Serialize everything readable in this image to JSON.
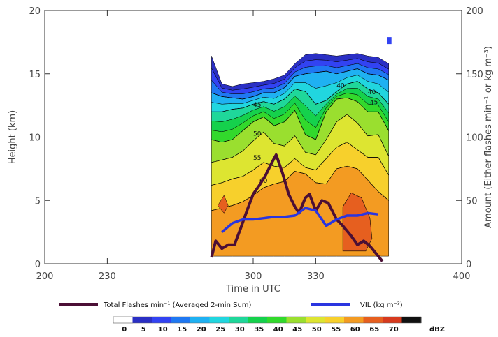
{
  "chart_data": {
    "type": "area",
    "xlabel": "Time in UTC",
    "ylabel": "Height (km)",
    "y2label": "Amount (Either flashes min⁻¹ or kg m⁻³)",
    "xlim": [
      200,
      400
    ],
    "ylim": [
      0,
      20
    ],
    "y2lim": [
      0,
      200
    ],
    "xticks": [
      "200",
      "230",
      "300",
      "330",
      "400"
    ],
    "yticks": [
      "0",
      "5",
      "10",
      "15",
      "20"
    ],
    "y2ticks": [
      "0",
      "50",
      "100",
      "150",
      "200"
    ],
    "reflectivity_contours": {
      "units": "dBZ",
      "time_start": 280,
      "time_end": 365,
      "times": [
        280,
        285,
        290,
        295,
        300,
        305,
        310,
        315,
        320,
        325,
        330,
        335,
        340,
        345,
        350,
        355,
        360,
        365
      ],
      "top_5dBZ": [
        16.4,
        14.2,
        14.0,
        14.2,
        14.3,
        14.4,
        14.6,
        14.9,
        15.8,
        16.5,
        16.6,
        16.5,
        16.4,
        16.5,
        16.6,
        16.4,
        16.3,
        15.8
      ],
      "level_20dBZ": [
        13.5,
        13.2,
        13.1,
        13.0,
        13.2,
        13.5,
        13.5,
        13.9,
        14.8,
        15.0,
        15.1,
        15.2,
        15.0,
        15.2,
        15.4,
        15.0,
        14.9,
        14.5
      ],
      "level_30dBZ": [
        12.0,
        12.0,
        12.2,
        12.3,
        12.6,
        12.8,
        12.6,
        13.0,
        13.8,
        13.6,
        12.6,
        12.9,
        13.6,
        14.2,
        14.4,
        13.8,
        13.5,
        12.6
      ],
      "level_45dBZ": [
        9.8,
        9.6,
        9.8,
        10.5,
        11.2,
        11.6,
        10.9,
        11.2,
        12.1,
        10.2,
        9.8,
        12.0,
        13.0,
        13.1,
        12.8,
        12.0,
        12.0,
        10.5
      ],
      "level_50dBZ": [
        8.0,
        8.2,
        8.4,
        8.9,
        9.7,
        10.4,
        9.5,
        9.3,
        10.1,
        8.8,
        8.6,
        9.8,
        11.2,
        11.8,
        11.1,
        10.1,
        10.2,
        8.5
      ],
      "level_55dBZ": [
        6.2,
        6.4,
        6.7,
        6.9,
        7.4,
        8.0,
        7.7,
        7.6,
        8.3,
        7.6,
        7.4,
        8.3,
        9.2,
        9.6,
        9.0,
        8.4,
        8.4,
        7.0
      ],
      "level_60dBZ": [
        4.2,
        4.4,
        4.6,
        4.9,
        5.4,
        6.0,
        6.3,
        6.5,
        7.3,
        7.1,
        6.4,
        6.3,
        7.5,
        7.7,
        7.5,
        6.6,
        5.7,
        5.0
      ],
      "contour_labels": [
        "40",
        "45",
        "50",
        "55",
        "60",
        "45",
        "40"
      ]
    },
    "series": [
      {
        "name": "Total Flashes min⁻¹ (Averaged 2-min Sum)",
        "color": "#4b0f35",
        "x": [
          280,
          282,
          285,
          288,
          291,
          294,
          297,
          300,
          303,
          306,
          309,
          311,
          314,
          317,
          320,
          322,
          325,
          327,
          330,
          333,
          336,
          340,
          343,
          347,
          350,
          353,
          356,
          360,
          362
        ],
        "y": [
          5,
          18,
          12,
          15,
          15,
          28,
          42,
          55,
          62,
          70,
          80,
          86,
          72,
          55,
          45,
          40,
          52,
          55,
          42,
          50,
          48,
          35,
          30,
          22,
          15,
          18,
          14,
          6,
          2
        ]
      },
      {
        "name": "VIL (kg m⁻³)",
        "color": "#2a35e0",
        "x": [
          285,
          290,
          295,
          300,
          305,
          310,
          315,
          320,
          325,
          330,
          335,
          340,
          345,
          350,
          355,
          360
        ],
        "y": [
          25,
          32,
          35,
          35,
          36,
          37,
          37,
          38,
          44,
          42,
          30,
          35,
          38,
          38,
          40,
          39
        ]
      }
    ],
    "colorbar": {
      "label": "dBZ",
      "ticks": [
        "0",
        "5",
        "10",
        "15",
        "20",
        "25",
        "30",
        "35",
        "40",
        "45",
        "50",
        "55",
        "60",
        "65",
        "70"
      ],
      "colors": [
        "#ffffff",
        "#2a2fc4",
        "#3243f2",
        "#1f78f2",
        "#1fb1f2",
        "#21d6df",
        "#1fd79a",
        "#15d14c",
        "#32d92c",
        "#9adf2f",
        "#dde531",
        "#f7d02c",
        "#f39b22",
        "#e65f1f",
        "#d63a1e",
        "#111111"
      ]
    }
  }
}
